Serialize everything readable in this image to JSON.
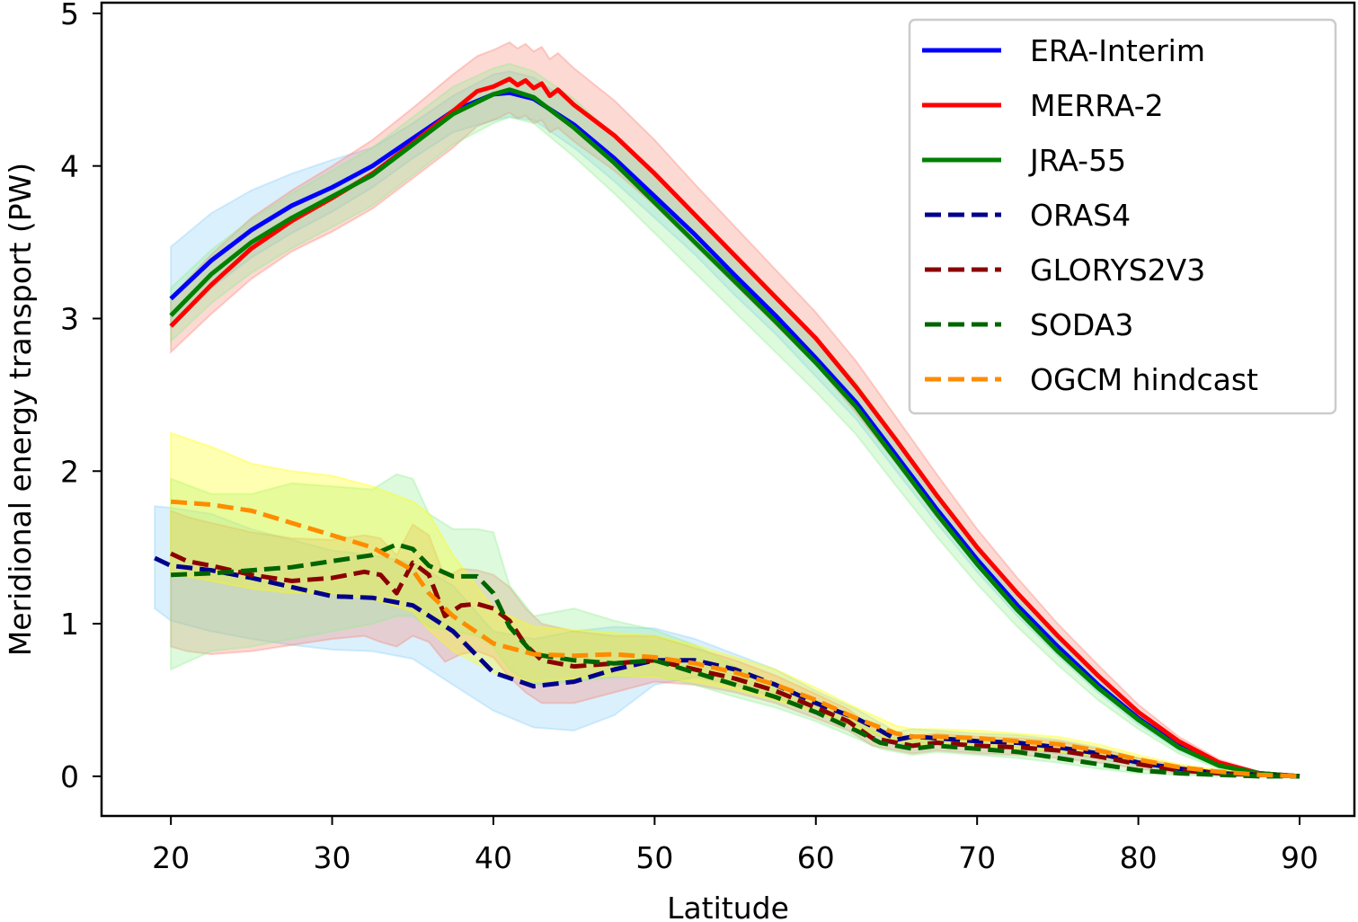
{
  "chart_data": {
    "type": "line",
    "title": "",
    "xlabel": "Latitude",
    "ylabel": "Meridional energy transport (PW)",
    "xlim": [
      15.7,
      93.4
    ],
    "ylim": [
      -0.26,
      5.07
    ],
    "xticks": [
      20,
      30,
      40,
      50,
      60,
      70,
      80,
      90
    ],
    "yticks": [
      0,
      1,
      2,
      3,
      4,
      5
    ],
    "xtick_labels": [
      "20",
      "30",
      "40",
      "50",
      "60",
      "70",
      "80",
      "90"
    ],
    "ytick_labels": [
      "0",
      "1",
      "2",
      "3",
      "4",
      "5"
    ],
    "grid": false,
    "legend_position": "top-right",
    "series": [
      {
        "name": "ERA-Interim",
        "color": "#0000ff",
        "style": "solid",
        "band_color": "#87cefa",
        "x": [
          20,
          22.5,
          25,
          27.5,
          30,
          32.5,
          35,
          37.5,
          40,
          41,
          42.5,
          45,
          47.5,
          50,
          52.5,
          55,
          57.5,
          60,
          62.5,
          65,
          67.5,
          70,
          72.5,
          75,
          77.5,
          80,
          82.5,
          85,
          87.5,
          90
        ],
        "y": [
          3.13,
          3.38,
          3.58,
          3.74,
          3.86,
          4.0,
          4.18,
          4.36,
          4.47,
          4.48,
          4.44,
          4.27,
          4.05,
          3.8,
          3.55,
          3.28,
          3.02,
          2.74,
          2.45,
          2.1,
          1.75,
          1.42,
          1.12,
          0.85,
          0.6,
          0.38,
          0.2,
          0.08,
          0.02,
          0.0
        ],
        "lower": [
          2.95,
          3.2,
          3.4,
          3.56,
          3.7,
          3.86,
          4.05,
          4.22,
          4.3,
          4.32,
          4.3,
          4.12,
          3.9,
          3.66,
          3.42,
          3.15,
          2.9,
          2.62,
          2.34,
          2.0,
          1.66,
          1.34,
          1.05,
          0.79,
          0.55,
          0.34,
          0.17,
          0.06,
          0.01,
          0.0
        ],
        "upper": [
          3.47,
          3.69,
          3.84,
          3.95,
          4.04,
          4.12,
          4.28,
          4.46,
          4.6,
          4.62,
          4.58,
          4.4,
          4.2,
          3.94,
          3.68,
          3.4,
          3.14,
          2.86,
          2.56,
          2.2,
          1.84,
          1.5,
          1.19,
          0.91,
          0.65,
          0.42,
          0.23,
          0.1,
          0.03,
          0.0
        ]
      },
      {
        "name": "MERRA-2",
        "color": "#ff0000",
        "style": "solid",
        "band_color": "#fa8072",
        "x": [
          20,
          22.5,
          25,
          27.5,
          30,
          32.5,
          35,
          37.5,
          39,
          40,
          41,
          41.5,
          42,
          42.5,
          43,
          43.5,
          44,
          45,
          47.5,
          50,
          52.5,
          55,
          57.5,
          60,
          62.5,
          65,
          67.5,
          70,
          72.5,
          75,
          77.5,
          80,
          82.5,
          85,
          87.5,
          90
        ],
        "y": [
          2.95,
          3.22,
          3.46,
          3.64,
          3.79,
          3.95,
          4.15,
          4.36,
          4.49,
          4.52,
          4.57,
          4.53,
          4.56,
          4.51,
          4.54,
          4.46,
          4.5,
          4.4,
          4.2,
          3.95,
          3.68,
          3.41,
          3.14,
          2.87,
          2.55,
          2.2,
          1.84,
          1.5,
          1.2,
          0.92,
          0.66,
          0.42,
          0.23,
          0.09,
          0.02,
          0.0
        ],
        "lower": [
          2.78,
          3.03,
          3.26,
          3.44,
          3.57,
          3.72,
          3.92,
          4.12,
          4.26,
          4.3,
          4.35,
          4.31,
          4.33,
          4.28,
          4.3,
          4.22,
          4.25,
          4.16,
          3.97,
          3.74,
          3.48,
          3.22,
          2.96,
          2.7,
          2.38,
          2.05,
          1.7,
          1.38,
          1.1,
          0.83,
          0.59,
          0.37,
          0.2,
          0.07,
          0.01,
          0.0
        ],
        "upper": [
          3.14,
          3.42,
          3.66,
          3.84,
          4.0,
          4.17,
          4.38,
          4.6,
          4.72,
          4.76,
          4.81,
          4.77,
          4.8,
          4.75,
          4.78,
          4.7,
          4.74,
          4.64,
          4.43,
          4.17,
          3.88,
          3.6,
          3.32,
          3.04,
          2.72,
          2.35,
          1.98,
          1.62,
          1.3,
          1.0,
          0.73,
          0.47,
          0.26,
          0.11,
          0.03,
          0.0
        ]
      },
      {
        "name": "JRA-55",
        "color": "#008000",
        "style": "solid",
        "band_color": "#90ee90",
        "x": [
          20,
          22.5,
          25,
          27.5,
          30,
          32.5,
          35,
          37.5,
          40,
          41,
          42.5,
          45,
          47.5,
          50,
          52.5,
          55,
          57.5,
          60,
          62.5,
          65,
          67.5,
          70,
          72.5,
          75,
          77.5,
          80,
          82.5,
          85,
          87.5,
          90
        ],
        "y": [
          3.02,
          3.29,
          3.5,
          3.66,
          3.8,
          3.94,
          4.14,
          4.34,
          4.47,
          4.5,
          4.45,
          4.25,
          4.02,
          3.76,
          3.5,
          3.24,
          2.98,
          2.71,
          2.42,
          2.07,
          1.72,
          1.39,
          1.09,
          0.82,
          0.58,
          0.37,
          0.19,
          0.07,
          0.02,
          0.0
        ],
        "lower": [
          2.85,
          3.1,
          3.3,
          3.46,
          3.6,
          3.74,
          3.94,
          4.14,
          4.28,
          4.32,
          4.28,
          4.06,
          3.82,
          3.56,
          3.3,
          3.04,
          2.78,
          2.52,
          2.24,
          1.9,
          1.57,
          1.26,
          0.98,
          0.73,
          0.5,
          0.31,
          0.15,
          0.05,
          0.01,
          0.0
        ],
        "upper": [
          3.2,
          3.45,
          3.65,
          3.82,
          3.97,
          4.12,
          4.32,
          4.52,
          4.64,
          4.67,
          4.62,
          4.44,
          4.2,
          3.94,
          3.68,
          3.42,
          3.16,
          2.88,
          2.58,
          2.22,
          1.86,
          1.52,
          1.2,
          0.91,
          0.66,
          0.43,
          0.23,
          0.09,
          0.03,
          0.0
        ]
      },
      {
        "name": "ORAS4",
        "color": "#00008b",
        "style": "dashed",
        "band_color": "#87cefa",
        "x": [
          19,
          20,
          22.5,
          25,
          27.5,
          30,
          32.5,
          35,
          37.5,
          40,
          42.5,
          45,
          47.5,
          50,
          52.5,
          55,
          57.5,
          60,
          62.5,
          64,
          65,
          66,
          67.5,
          70,
          72.5,
          75,
          77.5,
          80,
          82.5,
          85,
          87.5,
          90
        ],
        "y": [
          1.43,
          1.38,
          1.35,
          1.3,
          1.24,
          1.18,
          1.17,
          1.12,
          0.95,
          0.68,
          0.59,
          0.62,
          0.7,
          0.76,
          0.76,
          0.7,
          0.6,
          0.48,
          0.38,
          0.3,
          0.24,
          0.26,
          0.25,
          0.23,
          0.22,
          0.19,
          0.15,
          0.09,
          0.05,
          0.02,
          0.01,
          0.0
        ],
        "lower": [
          1.1,
          1.02,
          0.95,
          0.9,
          0.86,
          0.83,
          0.82,
          0.77,
          0.6,
          0.43,
          0.32,
          0.3,
          0.4,
          0.6,
          0.65,
          0.6,
          0.52,
          0.42,
          0.33,
          0.26,
          0.2,
          0.22,
          0.21,
          0.19,
          0.18,
          0.15,
          0.12,
          0.07,
          0.03,
          0.01,
          0.0,
          0.0
        ],
        "upper": [
          1.77,
          1.76,
          1.72,
          1.62,
          1.55,
          1.48,
          1.45,
          1.4,
          1.25,
          0.95,
          0.9,
          0.95,
          0.98,
          0.97,
          0.9,
          0.8,
          0.7,
          0.56,
          0.44,
          0.35,
          0.29,
          0.31,
          0.3,
          0.28,
          0.27,
          0.24,
          0.19,
          0.12,
          0.07,
          0.03,
          0.01,
          0.0
        ]
      },
      {
        "name": "GLORYS2V3",
        "color": "#8b0000",
        "style": "dashed",
        "band_color": "#fa8072",
        "x": [
          20,
          21,
          22.5,
          25,
          27.5,
          30,
          32,
          33,
          34,
          35,
          36,
          37,
          38,
          39,
          40,
          41,
          42,
          43,
          45,
          47.5,
          50,
          52.5,
          55,
          57.5,
          60,
          62,
          63.5,
          65,
          66,
          67.5,
          70,
          72.5,
          75,
          77.5,
          80,
          82.5,
          85,
          87.5,
          90
        ],
        "y": [
          1.46,
          1.41,
          1.38,
          1.32,
          1.28,
          1.3,
          1.34,
          1.32,
          1.2,
          1.4,
          1.32,
          1.05,
          1.12,
          1.13,
          1.1,
          1.02,
          0.86,
          0.76,
          0.72,
          0.74,
          0.76,
          0.7,
          0.64,
          0.56,
          0.45,
          0.36,
          0.25,
          0.22,
          0.2,
          0.22,
          0.2,
          0.19,
          0.17,
          0.13,
          0.08,
          0.04,
          0.02,
          0.01,
          0.0
        ],
        "lower": [
          0.85,
          0.82,
          0.8,
          0.82,
          0.86,
          0.9,
          0.92,
          0.88,
          0.85,
          0.92,
          0.88,
          0.75,
          0.8,
          0.82,
          0.78,
          0.65,
          0.55,
          0.48,
          0.48,
          0.55,
          0.62,
          0.6,
          0.55,
          0.48,
          0.38,
          0.3,
          0.2,
          0.17,
          0.15,
          0.17,
          0.15,
          0.14,
          0.12,
          0.09,
          0.05,
          0.02,
          0.01,
          0.0,
          0.0
        ],
        "upper": [
          1.74,
          1.7,
          1.66,
          1.6,
          1.56,
          1.55,
          1.58,
          1.56,
          1.45,
          1.65,
          1.58,
          1.3,
          1.36,
          1.35,
          1.32,
          1.24,
          1.1,
          1.0,
          0.95,
          0.92,
          0.92,
          0.84,
          0.76,
          0.66,
          0.54,
          0.44,
          0.32,
          0.28,
          0.26,
          0.28,
          0.26,
          0.25,
          0.23,
          0.18,
          0.12,
          0.07,
          0.03,
          0.01,
          0.0
        ]
      },
      {
        "name": "SODA3",
        "color": "#006400",
        "style": "dashed",
        "band_color": "#90ee90",
        "x": [
          20,
          22.5,
          25,
          27.5,
          30,
          32.5,
          34,
          35,
          36,
          37.5,
          39,
          40,
          41,
          42.5,
          45,
          47.5,
          50,
          52.5,
          55,
          57.5,
          60,
          62.5,
          64,
          65,
          66,
          67.5,
          70,
          72.5,
          75,
          77.5,
          80,
          82.5,
          85,
          87.5,
          90
        ],
        "y": [
          1.32,
          1.33,
          1.35,
          1.37,
          1.41,
          1.45,
          1.52,
          1.49,
          1.38,
          1.31,
          1.31,
          1.2,
          0.98,
          0.8,
          0.76,
          0.74,
          0.76,
          0.68,
          0.6,
          0.52,
          0.42,
          0.3,
          0.22,
          0.2,
          0.18,
          0.2,
          0.18,
          0.16,
          0.12,
          0.08,
          0.04,
          0.02,
          0.01,
          0.0,
          0.0
        ],
        "lower": [
          0.7,
          0.82,
          0.85,
          0.9,
          0.95,
          1.0,
          1.05,
          1.05,
          0.98,
          0.95,
          0.92,
          0.85,
          0.7,
          0.6,
          0.62,
          0.65,
          0.66,
          0.6,
          0.52,
          0.45,
          0.36,
          0.25,
          0.18,
          0.16,
          0.14,
          0.16,
          0.14,
          0.12,
          0.09,
          0.05,
          0.02,
          0.01,
          0.0,
          0.0,
          0.0
        ],
        "upper": [
          1.95,
          1.85,
          1.85,
          1.92,
          1.9,
          1.88,
          1.98,
          1.95,
          1.72,
          1.62,
          1.62,
          1.6,
          1.25,
          1.05,
          1.1,
          1.02,
          0.96,
          0.86,
          0.72,
          0.6,
          0.5,
          0.36,
          0.27,
          0.25,
          0.23,
          0.25,
          0.23,
          0.21,
          0.17,
          0.12,
          0.07,
          0.04,
          0.02,
          0.01,
          0.0
        ]
      },
      {
        "name": "OGCM hindcast",
        "color": "#ff8c00",
        "style": "dashed",
        "band_color": "#ffff00",
        "x": [
          20,
          22.5,
          25,
          27.5,
          30,
          32.5,
          35,
          36,
          37.5,
          40,
          42.5,
          45,
          47.5,
          50,
          52.5,
          55,
          57.5,
          60,
          62.5,
          65,
          66,
          67.5,
          70,
          72.5,
          75,
          77.5,
          80,
          82.5,
          85,
          87.5,
          90
        ],
        "y": [
          1.8,
          1.78,
          1.74,
          1.66,
          1.58,
          1.5,
          1.35,
          1.2,
          1.05,
          0.87,
          0.8,
          0.79,
          0.8,
          0.78,
          0.74,
          0.68,
          0.6,
          0.5,
          0.38,
          0.28,
          0.26,
          0.26,
          0.25,
          0.23,
          0.21,
          0.17,
          0.11,
          0.06,
          0.03,
          0.01,
          0.0
        ],
        "lower": [
          1.33,
          1.28,
          1.23,
          1.2,
          1.2,
          1.16,
          1.08,
          0.96,
          0.82,
          0.68,
          0.62,
          0.64,
          0.66,
          0.65,
          0.62,
          0.57,
          0.5,
          0.42,
          0.32,
          0.23,
          0.21,
          0.21,
          0.2,
          0.18,
          0.16,
          0.13,
          0.08,
          0.04,
          0.02,
          0.0,
          0.0
        ],
        "upper": [
          2.25,
          2.16,
          2.05,
          2.0,
          1.97,
          1.9,
          1.8,
          1.72,
          1.45,
          1.1,
          0.98,
          0.96,
          0.94,
          0.92,
          0.86,
          0.78,
          0.7,
          0.58,
          0.45,
          0.33,
          0.31,
          0.31,
          0.3,
          0.28,
          0.26,
          0.21,
          0.14,
          0.08,
          0.04,
          0.02,
          0.0
        ]
      }
    ]
  }
}
